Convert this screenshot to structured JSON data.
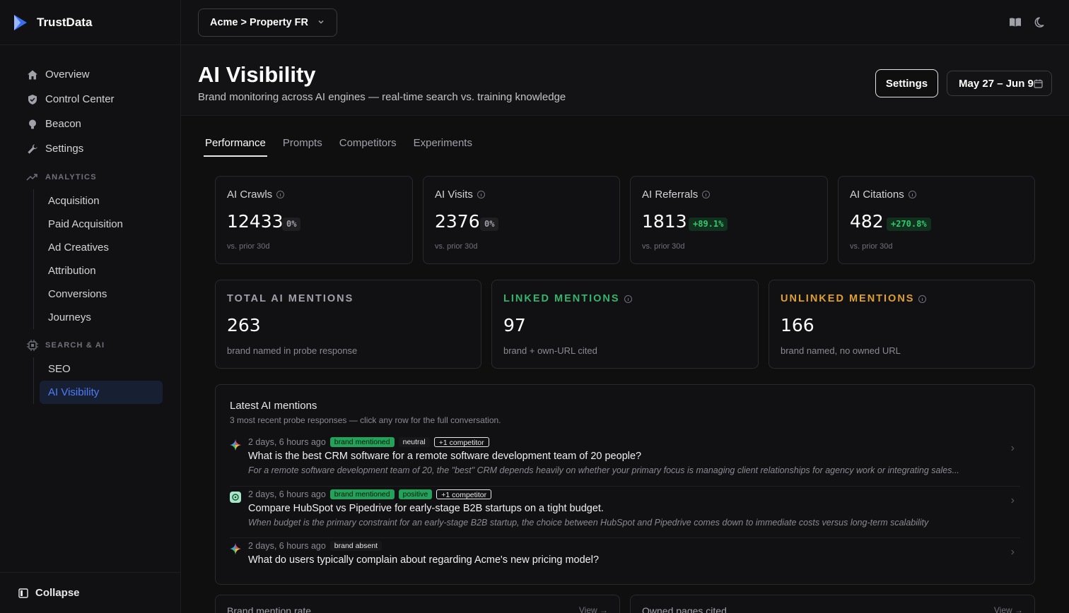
{
  "app": {
    "name": "TrustData"
  },
  "topbar": {
    "property": "Acme > Property FR",
    "docs_icon": "book-open-icon",
    "theme_icon": "moon-icon"
  },
  "sidebar": {
    "main_items": [
      {
        "label": "Overview",
        "icon": "home-icon"
      },
      {
        "label": "Control Center",
        "icon": "shield-check-icon"
      },
      {
        "label": "Beacon",
        "icon": "lightbulb-icon"
      },
      {
        "label": "Settings",
        "icon": "wrench-icon"
      }
    ],
    "analytics": {
      "label": "ANALYTICS",
      "items": [
        "Acquisition",
        "Paid Acquisition",
        "Ad Creatives",
        "Attribution",
        "Conversions",
        "Journeys"
      ]
    },
    "search_ai": {
      "label": "SEARCH & AI",
      "items": [
        "SEO",
        "AI Visibility"
      ],
      "active": "AI Visibility"
    },
    "collapse": "Collapse"
  },
  "header": {
    "title": "AI Visibility",
    "subtitle": "Brand monitoring across AI engines — real-time search vs. training knowledge",
    "settings_button": "Settings",
    "date_range": "May 27 – Jun 9"
  },
  "tabs": [
    "Performance",
    "Prompts",
    "Competitors",
    "Experiments"
  ],
  "active_tab": "Performance",
  "kpis": [
    {
      "label": "AI Crawls",
      "value": "12433",
      "delta": "0%",
      "trend": "neutral",
      "note": "vs. prior 30d"
    },
    {
      "label": "AI Visits",
      "value": "2376",
      "delta": "0%",
      "trend": "neutral",
      "note": "vs. prior 30d"
    },
    {
      "label": "AI Referrals",
      "value": "1813",
      "delta": "+89.1%",
      "trend": "up",
      "note": "vs. prior 30d"
    },
    {
      "label": "AI Citations",
      "value": "482",
      "delta": "+270.8%",
      "trend": "up",
      "note": "vs. prior 30d"
    }
  ],
  "mentions": [
    {
      "label": "TOTAL AI MENTIONS",
      "value": "263",
      "note": "brand named in probe response",
      "color": "#a1a1aa"
    },
    {
      "label": "LINKED MENTIONS",
      "value": "97",
      "note": "brand + own-URL cited",
      "color": "#34b46d"
    },
    {
      "label": "UNLINKED MENTIONS",
      "value": "166",
      "note": "brand named, no owned URL",
      "color": "#e0a030"
    }
  ],
  "latest": {
    "title": "Latest AI mentions",
    "subtitle": "3 most recent probe responses — click any row for the full conversation.",
    "rows": [
      {
        "engine": "gemini-icon",
        "time": "2 days, 6 hours ago",
        "badges": [
          "brand mentioned",
          "neutral",
          "+1 competitor"
        ],
        "question": "What is the best CRM software for a remote software development team of 20 people?",
        "snippet": "For a remote software development team of 20, the \"best\" CRM depends heavily on whether your primary focus is managing client relationships for agency work or integrating sales..."
      },
      {
        "engine": "chatgpt-icon",
        "time": "2 days, 6 hours ago",
        "badges": [
          "brand mentioned",
          "positive",
          "+1 competitor"
        ],
        "question": "Compare HubSpot vs Pipedrive for early-stage B2B startups on a tight budget.",
        "snippet": "When budget is the primary constraint for an early-stage B2B startup, the choice between HubSpot and Pipedrive comes down to immediate costs versus long-term scalability"
      },
      {
        "engine": "gemini-icon",
        "time": "2 days, 6 hours ago",
        "badges": [
          "brand absent"
        ],
        "question": "What do users typically complain about regarding Acme's new pricing model?",
        "snippet": ""
      }
    ]
  },
  "bottom_cards": [
    {
      "title": "Brand mention rate",
      "link": "View →"
    },
    {
      "title": "Owned pages cited",
      "link": "View →"
    }
  ]
}
